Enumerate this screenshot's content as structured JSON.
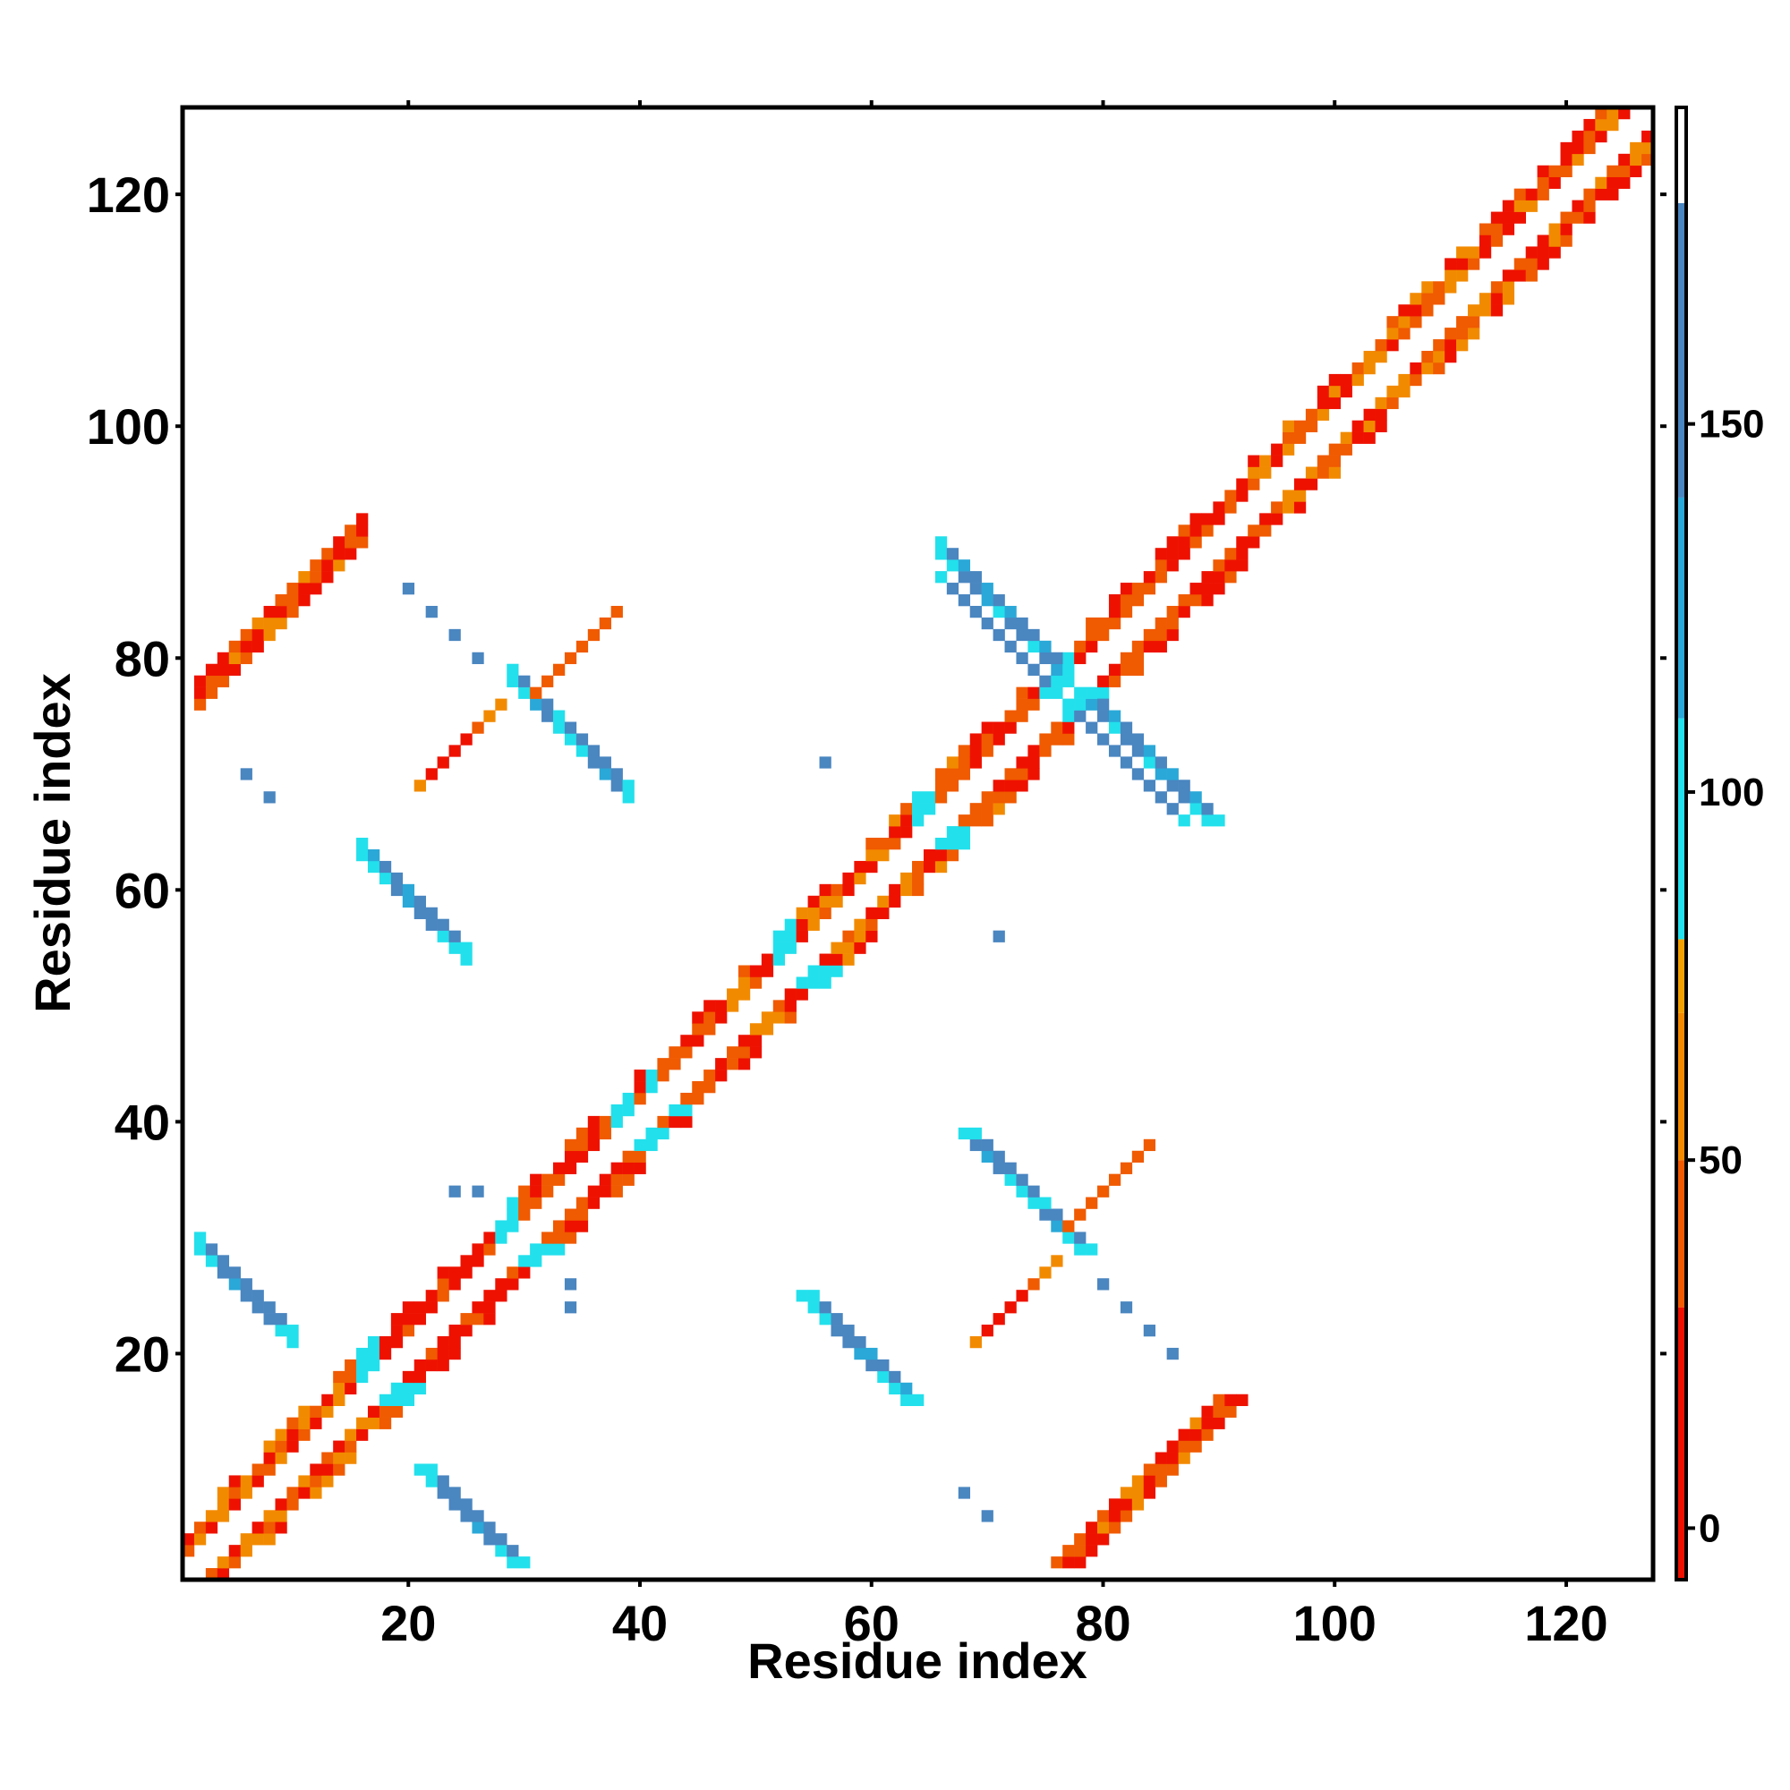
{
  "chart_data": {
    "type": "heatmap",
    "title": "",
    "xlabel": "Residue index",
    "ylabel": "Residue index",
    "xlim": [
      0.5,
      127.5
    ],
    "ylim": [
      0.5,
      127.5
    ],
    "x_ticks": [
      20,
      40,
      60,
      80,
      100,
      120
    ],
    "y_ticks": [
      20,
      40,
      60,
      80,
      100,
      120
    ],
    "colorbar": {
      "ticks": [
        0,
        50,
        100,
        150
      ],
      "range": [
        -7,
        193
      ],
      "bands": [
        {
          "from": -7,
          "to": 30,
          "color": "#ee1100"
        },
        {
          "from": 30,
          "to": 50,
          "color": "#f05a00"
        },
        {
          "from": 50,
          "to": 70,
          "color": "#f28a00"
        },
        {
          "from": 70,
          "to": 80,
          "color": "#f2a000"
        },
        {
          "from": 80,
          "to": 110,
          "color": "#22e0ec"
        },
        {
          "from": 110,
          "to": 140,
          "color": "#2aa8d8"
        },
        {
          "from": 140,
          "to": 180,
          "color": "#4a86c0"
        },
        {
          "from": 180,
          "to": 193,
          "color": "#ffffff"
        }
      ]
    },
    "legend_colors": {
      "red": "#ee1100",
      "orange_red": "#f05a00",
      "orange": "#f28a00",
      "cyan": "#22e0ec",
      "light_blue": "#2aa8d8",
      "steel_blue": "#4a86c0"
    },
    "regions": [
      {
        "name": "helix-diagonal-1",
        "kind": "helix",
        "x": [
          1,
          40
        ],
        "y": [
          1,
          40
        ]
      },
      {
        "name": "helix-diagonal-2",
        "kind": "helix",
        "x": [
          40,
          80
        ],
        "y": [
          40,
          80
        ]
      },
      {
        "name": "helix-diagonal-3",
        "kind": "helix",
        "x": [
          80,
          127
        ],
        "y": [
          80,
          127
        ]
      },
      {
        "name": "antiparallel-sheet-1",
        "kind": "antiparallel",
        "x": [
          1,
          10
        ],
        "y": [
          22,
          30
        ],
        "value": 150
      },
      {
        "name": "antiparallel-sheet-2",
        "kind": "antiparallel",
        "x": [
          16,
          26
        ],
        "y": [
          53,
          62
        ],
        "value": 150
      },
      {
        "name": "antiparallel-sheet-3",
        "kind": "antiparallel",
        "x": [
          29,
          40
        ],
        "y": [
          67,
          77
        ],
        "value": 150
      },
      {
        "name": "antiparallel-sheet-4",
        "kind": "antiparallel",
        "x": [
          66,
          77
        ],
        "y": [
          75,
          88
        ],
        "value": 150
      },
      {
        "name": "parallel-contact-1",
        "kind": "parallel",
        "x": [
          2,
          17
        ],
        "y": [
          76,
          92
        ],
        "value": 15
      },
      {
        "name": "parallel-contact-2",
        "kind": "parallel",
        "x": [
          21,
          29
        ],
        "y": [
          68,
          75
        ],
        "value": 10
      },
      {
        "name": "parallel-contact-3",
        "kind": "parallel",
        "x": [
          31,
          39
        ],
        "y": [
          78,
          83
        ],
        "value": 45
      },
      {
        "name": "weak-contacts",
        "kind": "sparse",
        "x": [
          2,
          126
        ],
        "y": [
          2,
          126
        ],
        "value": 145
      }
    ]
  }
}
